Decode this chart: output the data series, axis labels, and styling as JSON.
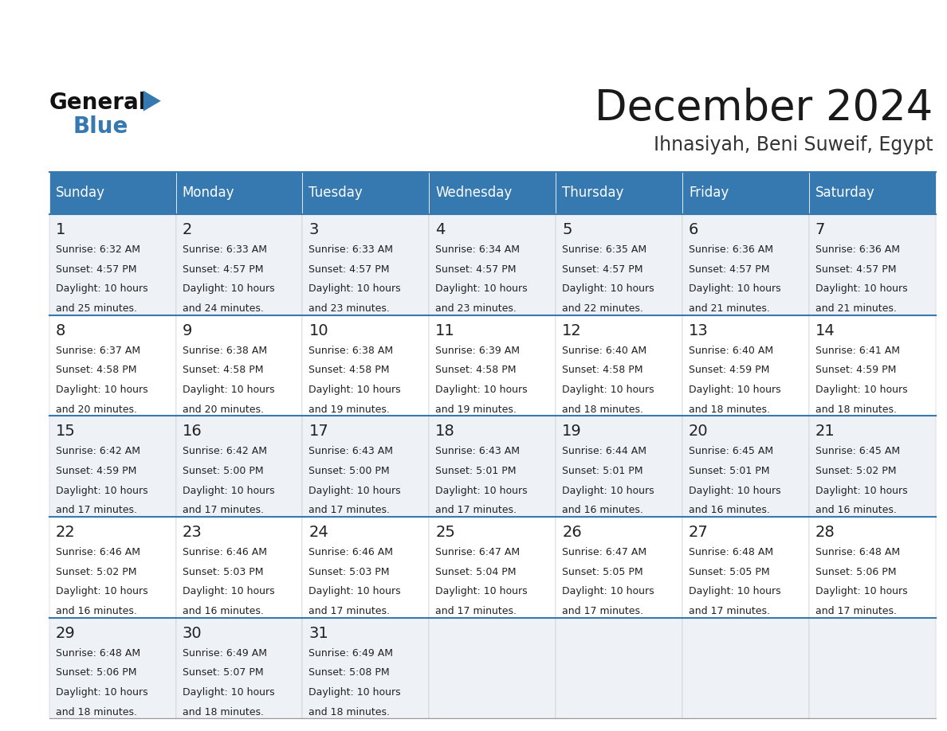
{
  "title": "December 2024",
  "subtitle": "Ihnasiyah, Beni Suweif, Egypt",
  "days_of_week": [
    "Sunday",
    "Monday",
    "Tuesday",
    "Wednesday",
    "Thursday",
    "Friday",
    "Saturday"
  ],
  "header_bg": "#3679b0",
  "header_text": "#ffffff",
  "row_bg_light": "#eef2f7",
  "row_bg_white": "#ffffff",
  "separator_color": "#3679b0",
  "day_num_color": "#222222",
  "text_color": "#222222",
  "title_color": "#1a1a1a",
  "subtitle_color": "#333333",
  "weeks": [
    {
      "days": [
        {
          "date": 1,
          "sunrise": "6:32 AM",
          "sunset": "4:57 PM",
          "daylight_hours": 10,
          "daylight_minutes": 25
        },
        {
          "date": 2,
          "sunrise": "6:33 AM",
          "sunset": "4:57 PM",
          "daylight_hours": 10,
          "daylight_minutes": 24
        },
        {
          "date": 3,
          "sunrise": "6:33 AM",
          "sunset": "4:57 PM",
          "daylight_hours": 10,
          "daylight_minutes": 23
        },
        {
          "date": 4,
          "sunrise": "6:34 AM",
          "sunset": "4:57 PM",
          "daylight_hours": 10,
          "daylight_minutes": 23
        },
        {
          "date": 5,
          "sunrise": "6:35 AM",
          "sunset": "4:57 PM",
          "daylight_hours": 10,
          "daylight_minutes": 22
        },
        {
          "date": 6,
          "sunrise": "6:36 AM",
          "sunset": "4:57 PM",
          "daylight_hours": 10,
          "daylight_minutes": 21
        },
        {
          "date": 7,
          "sunrise": "6:36 AM",
          "sunset": "4:57 PM",
          "daylight_hours": 10,
          "daylight_minutes": 21
        }
      ]
    },
    {
      "days": [
        {
          "date": 8,
          "sunrise": "6:37 AM",
          "sunset": "4:58 PM",
          "daylight_hours": 10,
          "daylight_minutes": 20
        },
        {
          "date": 9,
          "sunrise": "6:38 AM",
          "sunset": "4:58 PM",
          "daylight_hours": 10,
          "daylight_minutes": 20
        },
        {
          "date": 10,
          "sunrise": "6:38 AM",
          "sunset": "4:58 PM",
          "daylight_hours": 10,
          "daylight_minutes": 19
        },
        {
          "date": 11,
          "sunrise": "6:39 AM",
          "sunset": "4:58 PM",
          "daylight_hours": 10,
          "daylight_minutes": 19
        },
        {
          "date": 12,
          "sunrise": "6:40 AM",
          "sunset": "4:58 PM",
          "daylight_hours": 10,
          "daylight_minutes": 18
        },
        {
          "date": 13,
          "sunrise": "6:40 AM",
          "sunset": "4:59 PM",
          "daylight_hours": 10,
          "daylight_minutes": 18
        },
        {
          "date": 14,
          "sunrise": "6:41 AM",
          "sunset": "4:59 PM",
          "daylight_hours": 10,
          "daylight_minutes": 18
        }
      ]
    },
    {
      "days": [
        {
          "date": 15,
          "sunrise": "6:42 AM",
          "sunset": "4:59 PM",
          "daylight_hours": 10,
          "daylight_minutes": 17
        },
        {
          "date": 16,
          "sunrise": "6:42 AM",
          "sunset": "5:00 PM",
          "daylight_hours": 10,
          "daylight_minutes": 17
        },
        {
          "date": 17,
          "sunrise": "6:43 AM",
          "sunset": "5:00 PM",
          "daylight_hours": 10,
          "daylight_minutes": 17
        },
        {
          "date": 18,
          "sunrise": "6:43 AM",
          "sunset": "5:01 PM",
          "daylight_hours": 10,
          "daylight_minutes": 17
        },
        {
          "date": 19,
          "sunrise": "6:44 AM",
          "sunset": "5:01 PM",
          "daylight_hours": 10,
          "daylight_minutes": 16
        },
        {
          "date": 20,
          "sunrise": "6:45 AM",
          "sunset": "5:01 PM",
          "daylight_hours": 10,
          "daylight_minutes": 16
        },
        {
          "date": 21,
          "sunrise": "6:45 AM",
          "sunset": "5:02 PM",
          "daylight_hours": 10,
          "daylight_minutes": 16
        }
      ]
    },
    {
      "days": [
        {
          "date": 22,
          "sunrise": "6:46 AM",
          "sunset": "5:02 PM",
          "daylight_hours": 10,
          "daylight_minutes": 16
        },
        {
          "date": 23,
          "sunrise": "6:46 AM",
          "sunset": "5:03 PM",
          "daylight_hours": 10,
          "daylight_minutes": 16
        },
        {
          "date": 24,
          "sunrise": "6:46 AM",
          "sunset": "5:03 PM",
          "daylight_hours": 10,
          "daylight_minutes": 17
        },
        {
          "date": 25,
          "sunrise": "6:47 AM",
          "sunset": "5:04 PM",
          "daylight_hours": 10,
          "daylight_minutes": 17
        },
        {
          "date": 26,
          "sunrise": "6:47 AM",
          "sunset": "5:05 PM",
          "daylight_hours": 10,
          "daylight_minutes": 17
        },
        {
          "date": 27,
          "sunrise": "6:48 AM",
          "sunset": "5:05 PM",
          "daylight_hours": 10,
          "daylight_minutes": 17
        },
        {
          "date": 28,
          "sunrise": "6:48 AM",
          "sunset": "5:06 PM",
          "daylight_hours": 10,
          "daylight_minutes": 17
        }
      ]
    },
    {
      "days": [
        {
          "date": 29,
          "sunrise": "6:48 AM",
          "sunset": "5:06 PM",
          "daylight_hours": 10,
          "daylight_minutes": 18
        },
        {
          "date": 30,
          "sunrise": "6:49 AM",
          "sunset": "5:07 PM",
          "daylight_hours": 10,
          "daylight_minutes": 18
        },
        {
          "date": 31,
          "sunrise": "6:49 AM",
          "sunset": "5:08 PM",
          "daylight_hours": 10,
          "daylight_minutes": 18
        },
        null,
        null,
        null,
        null
      ]
    }
  ]
}
